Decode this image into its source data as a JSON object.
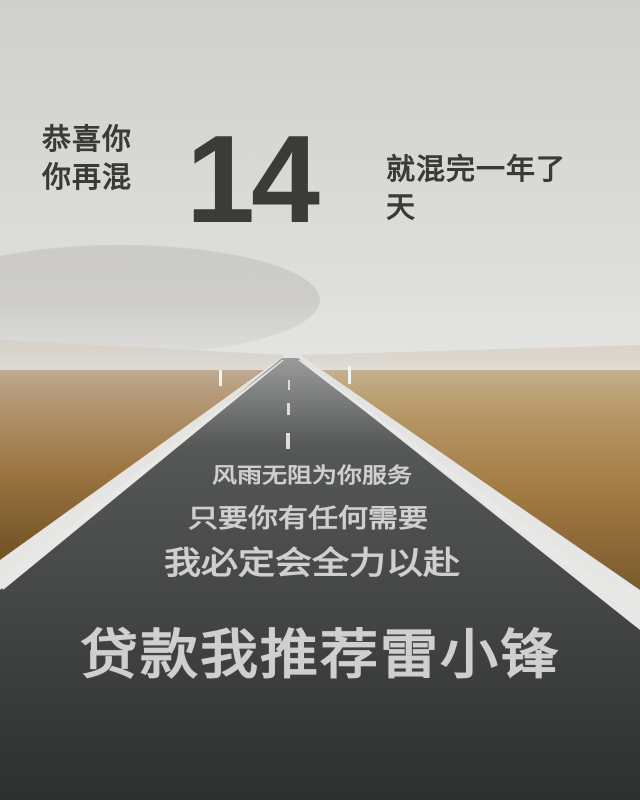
{
  "headline": {
    "left_lines": [
      "恭喜你",
      "你再混"
    ],
    "number": "14",
    "right_lines": [
      "就混完一年了",
      "天"
    ]
  },
  "road_text": {
    "line1": "风雨无阻为你服务",
    "line2": "只要你有任何需要",
    "line3": "我必定会全力以赴",
    "line4": "贷款我推荐雷小锋"
  }
}
